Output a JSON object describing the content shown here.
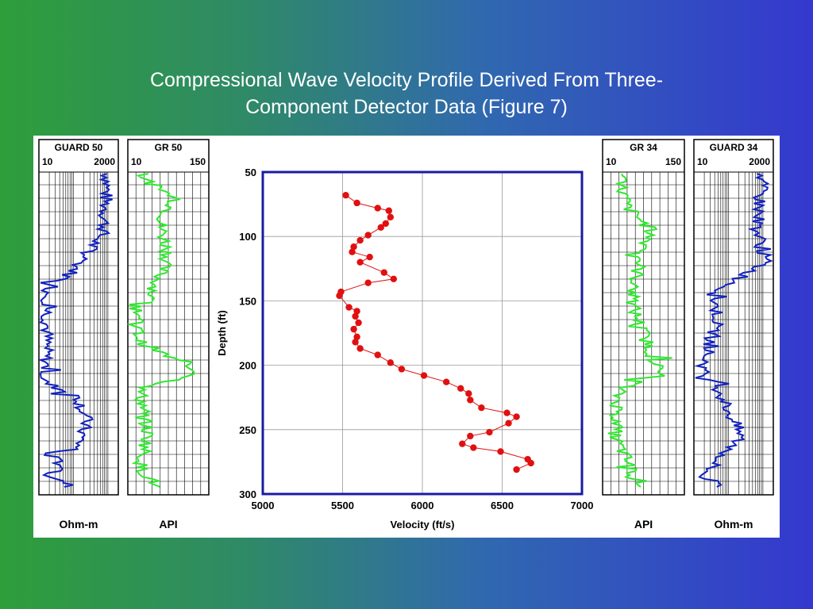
{
  "slide": {
    "title_line1": "Compressional Wave Velocity Profile Derived From Three-",
    "title_line2": "Component Detector Data (Figure 7)"
  },
  "colors": {
    "background_left": "#2e9e3a",
    "background_right": "#3438cf",
    "guard_curve": "#1020c0",
    "gr_curve": "#2ee82e",
    "velocity_points": "#e01010",
    "plot_frame": "#1a1aa0"
  },
  "logs": [
    {
      "id": "guard50",
      "title": "GUARD 50",
      "scale_min": "10",
      "scale_max": "2000",
      "unit": "Ohm-m",
      "scale": "log"
    },
    {
      "id": "gr50",
      "title": "GR 50",
      "scale_min": "10",
      "scale_max": "150",
      "unit": "API",
      "scale": "linear"
    },
    {
      "id": "gr34",
      "title": "GR 34",
      "scale_min": "10",
      "scale_max": "150",
      "unit": "API",
      "scale": "linear"
    },
    {
      "id": "guard34",
      "title": "GUARD 34",
      "scale_min": "10",
      "scale_max": "2000",
      "unit": "Ohm-m",
      "scale": "log"
    }
  ],
  "chart_data": {
    "type": "scatter",
    "title": "",
    "xlabel": "Velocity (ft/s)",
    "ylabel": "Depth (ft)",
    "xlim": [
      5000,
      7000
    ],
    "ylim": [
      50,
      300
    ],
    "y_inverted": true,
    "x_ticks": [
      "5000",
      "5500",
      "6000",
      "6500",
      "7000"
    ],
    "y_ticks": [
      "50",
      "100",
      "150",
      "200",
      "250",
      "300"
    ],
    "grid": true,
    "connected": true,
    "series": [
      {
        "points": [
          {
            "x": 5520,
            "y": 68
          },
          {
            "x": 5590,
            "y": 74
          },
          {
            "x": 5720,
            "y": 78
          },
          {
            "x": 5790,
            "y": 80
          },
          {
            "x": 5800,
            "y": 85
          },
          {
            "x": 5770,
            "y": 90
          },
          {
            "x": 5740,
            "y": 93
          },
          {
            "x": 5660,
            "y": 99
          },
          {
            "x": 5610,
            "y": 103
          },
          {
            "x": 5570,
            "y": 108
          },
          {
            "x": 5560,
            "y": 112
          },
          {
            "x": 5670,
            "y": 116
          },
          {
            "x": 5610,
            "y": 120
          },
          {
            "x": 5760,
            "y": 128
          },
          {
            "x": 5820,
            "y": 133
          },
          {
            "x": 5660,
            "y": 136
          },
          {
            "x": 5490,
            "y": 143
          },
          {
            "x": 5480,
            "y": 146
          },
          {
            "x": 5540,
            "y": 155
          },
          {
            "x": 5590,
            "y": 158
          },
          {
            "x": 5580,
            "y": 162
          },
          {
            "x": 5600,
            "y": 167
          },
          {
            "x": 5570,
            "y": 172
          },
          {
            "x": 5590,
            "y": 178
          },
          {
            "x": 5580,
            "y": 182
          },
          {
            "x": 5610,
            "y": 187
          },
          {
            "x": 5720,
            "y": 192
          },
          {
            "x": 5800,
            "y": 198
          },
          {
            "x": 5870,
            "y": 203
          },
          {
            "x": 6010,
            "y": 208
          },
          {
            "x": 6150,
            "y": 213
          },
          {
            "x": 6240,
            "y": 218
          },
          {
            "x": 6290,
            "y": 222
          },
          {
            "x": 6300,
            "y": 227
          },
          {
            "x": 6370,
            "y": 233
          },
          {
            "x": 6530,
            "y": 237
          },
          {
            "x": 6590,
            "y": 240
          },
          {
            "x": 6540,
            "y": 245
          },
          {
            "x": 6420,
            "y": 252
          },
          {
            "x": 6300,
            "y": 255
          },
          {
            "x": 6250,
            "y": 261
          },
          {
            "x": 6320,
            "y": 264
          },
          {
            "x": 6490,
            "y": 267
          },
          {
            "x": 6660,
            "y": 273
          },
          {
            "x": 6680,
            "y": 276
          },
          {
            "x": 6590,
            "y": 281
          }
        ]
      }
    ]
  }
}
